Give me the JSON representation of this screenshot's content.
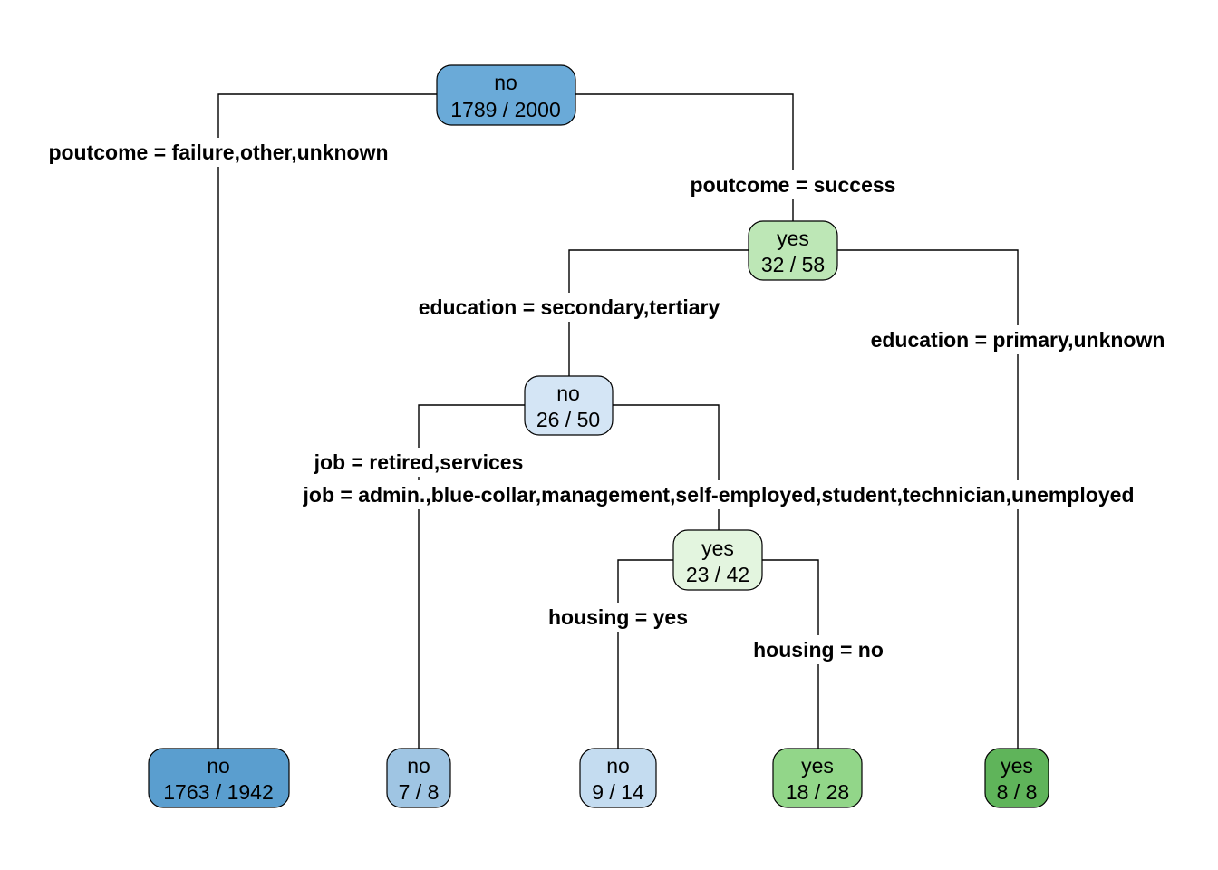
{
  "colors": {
    "no_dark": "#5a9ecf",
    "no_root": "#6aaad8",
    "no_mid": "#9fc5e3",
    "no_light": "#c4dcf0",
    "no_lighter": "#d4e5f5",
    "yes_lighter": "#e3f5df",
    "yes_light": "#bde7b6",
    "yes_mid": "#92d689",
    "yes_dark": "#5fb45a"
  },
  "nodes": {
    "root": {
      "label": "no",
      "stats": "1789 / 2000"
    },
    "n_success": {
      "label": "yes",
      "stats": "32 / 58"
    },
    "n_edu": {
      "label": "no",
      "stats": "26 / 50"
    },
    "n_job": {
      "label": "yes",
      "stats": "23 / 42"
    },
    "leaf_failure": {
      "label": "no",
      "stats": "1763 / 1942"
    },
    "leaf_retired": {
      "label": "no",
      "stats": "7 / 8"
    },
    "leaf_housing_yes": {
      "label": "no",
      "stats": "9 / 14"
    },
    "leaf_housing_no": {
      "label": "yes",
      "stats": "18 / 28"
    },
    "leaf_primary": {
      "label": "yes",
      "stats": "8 / 8"
    }
  },
  "splits": {
    "poutcome_left": "poutcome = failure,other,unknown",
    "poutcome_right": "poutcome = success",
    "education_left": "education = secondary,tertiary",
    "education_right": "education = primary,unknown",
    "job_left": "job = retired,services",
    "job_right": "job = admin.,blue-collar,management,self-employed,student,technician,unemployed",
    "housing_left": "housing = yes",
    "housing_right": "housing = no"
  }
}
